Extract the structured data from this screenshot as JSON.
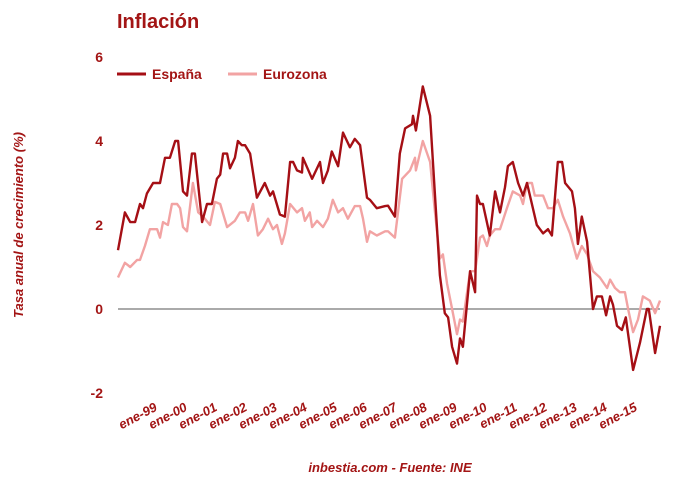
{
  "chart_data": {
    "type": "line",
    "title": "Inflación",
    "ylabel": "Tasa anual de crecimiento (%)",
    "xlabel": "",
    "source": "inbestia.com - Fuente: INE",
    "ylim": [
      -2,
      6
    ],
    "xlim": [
      1999.0,
      2015.5
    ],
    "yticks": [
      "6",
      "4",
      "2",
      "0",
      "-2"
    ],
    "ytick_values": [
      6,
      4,
      2,
      0,
      -2
    ],
    "xtick_labels": [
      "ene-99",
      "ene-00",
      "ene-01",
      "ene-02",
      "ene-03",
      "ene-04",
      "ene-05",
      "ene-06",
      "ene-07",
      "ene-08",
      "ene-09",
      "ene-10",
      "ene-11",
      "ene-12",
      "ene-13",
      "ene-14",
      "ene-15"
    ],
    "grid": false,
    "zero_line": true,
    "legend_position": "top-left",
    "colors": {
      "espana": "#a50f15",
      "eurozona": "#f2a3a3",
      "text": "#a31515",
      "zero": "#555555"
    },
    "series": [
      {
        "name": "España",
        "points": [
          [
            1999.0,
            1.4
          ],
          [
            1999.21,
            2.3
          ],
          [
            1999.37,
            2.07
          ],
          [
            1999.52,
            2.07
          ],
          [
            1999.67,
            2.5
          ],
          [
            1999.76,
            2.4
          ],
          [
            1999.88,
            2.75
          ],
          [
            2000.07,
            3.0
          ],
          [
            2000.28,
            3.0
          ],
          [
            2000.43,
            3.6
          ],
          [
            2000.58,
            3.6
          ],
          [
            2000.74,
            4.0
          ],
          [
            2000.83,
            4.0
          ],
          [
            2000.98,
            2.8
          ],
          [
            2001.1,
            2.7
          ],
          [
            2001.25,
            3.7
          ],
          [
            2001.34,
            3.7
          ],
          [
            2001.56,
            2.07
          ],
          [
            2001.71,
            2.5
          ],
          [
            2001.86,
            2.5
          ],
          [
            2002.01,
            3.1
          ],
          [
            2002.11,
            3.2
          ],
          [
            2002.2,
            3.7
          ],
          [
            2002.32,
            3.7
          ],
          [
            2002.41,
            3.35
          ],
          [
            2002.56,
            3.6
          ],
          [
            2002.65,
            4.0
          ],
          [
            2002.77,
            3.9
          ],
          [
            2002.87,
            3.9
          ],
          [
            2003.02,
            3.7
          ],
          [
            2003.23,
            2.65
          ],
          [
            2003.47,
            3.0
          ],
          [
            2003.63,
            2.7
          ],
          [
            2003.72,
            2.8
          ],
          [
            2003.93,
            2.25
          ],
          [
            2004.08,
            2.2
          ],
          [
            2004.24,
            3.5
          ],
          [
            2004.33,
            3.5
          ],
          [
            2004.45,
            3.3
          ],
          [
            2004.6,
            3.25
          ],
          [
            2004.63,
            3.6
          ],
          [
            2004.91,
            3.1
          ],
          [
            2005.15,
            3.5
          ],
          [
            2005.24,
            3.0
          ],
          [
            2005.39,
            3.3
          ],
          [
            2005.51,
            3.75
          ],
          [
            2005.7,
            3.4
          ],
          [
            2005.85,
            4.2
          ],
          [
            2006.06,
            3.85
          ],
          [
            2006.21,
            4.05
          ],
          [
            2006.37,
            3.9
          ],
          [
            2006.58,
            2.65
          ],
          [
            2006.67,
            2.6
          ],
          [
            2006.88,
            2.4
          ],
          [
            2007.13,
            2.45
          ],
          [
            2007.22,
            2.46
          ],
          [
            2007.43,
            2.2
          ],
          [
            2007.58,
            3.7
          ],
          [
            2007.74,
            4.3
          ],
          [
            2007.95,
            4.4
          ],
          [
            2007.98,
            4.6
          ],
          [
            2008.07,
            4.25
          ],
          [
            2008.28,
            5.3
          ],
          [
            2008.5,
            4.6
          ],
          [
            2008.65,
            2.7
          ],
          [
            2008.8,
            0.8
          ],
          [
            2008.95,
            -0.1
          ],
          [
            2009.05,
            -0.2
          ],
          [
            2009.17,
            -0.9
          ],
          [
            2009.32,
            -1.3
          ],
          [
            2009.41,
            -0.7
          ],
          [
            2009.5,
            -0.9
          ],
          [
            2009.72,
            0.9
          ],
          [
            2009.87,
            0.4
          ],
          [
            2009.93,
            2.7
          ],
          [
            2010.02,
            2.5
          ],
          [
            2010.11,
            2.5
          ],
          [
            2010.32,
            1.75
          ],
          [
            2010.48,
            2.8
          ],
          [
            2010.63,
            2.3
          ],
          [
            2010.78,
            2.9
          ],
          [
            2010.87,
            3.4
          ],
          [
            2011.02,
            3.5
          ],
          [
            2011.18,
            3.0
          ],
          [
            2011.33,
            2.7
          ],
          [
            2011.45,
            3.0
          ],
          [
            2011.75,
            2.0
          ],
          [
            2011.94,
            1.8
          ],
          [
            2012.09,
            1.9
          ],
          [
            2012.21,
            1.75
          ],
          [
            2012.39,
            3.5
          ],
          [
            2012.52,
            3.5
          ],
          [
            2012.61,
            3.0
          ],
          [
            2012.82,
            2.8
          ],
          [
            2012.91,
            2.4
          ],
          [
            2013.0,
            1.55
          ],
          [
            2013.12,
            2.2
          ],
          [
            2013.28,
            1.6
          ],
          [
            2013.46,
            0.0
          ],
          [
            2013.58,
            0.3
          ],
          [
            2013.73,
            0.3
          ],
          [
            2013.86,
            -0.15
          ],
          [
            2013.98,
            0.3
          ],
          [
            2014.07,
            0.1
          ],
          [
            2014.19,
            -0.4
          ],
          [
            2014.34,
            -0.5
          ],
          [
            2014.46,
            -0.2
          ],
          [
            2014.68,
            -1.45
          ],
          [
            2014.89,
            -0.8
          ],
          [
            2015.1,
            0.0
          ],
          [
            2015.16,
            0.0
          ],
          [
            2015.35,
            -1.05
          ],
          [
            2015.5,
            -0.4
          ]
        ]
      },
      {
        "name": "Eurozona",
        "points": [
          [
            1999.0,
            0.75
          ],
          [
            1999.21,
            1.1
          ],
          [
            1999.37,
            1.0
          ],
          [
            1999.58,
            1.17
          ],
          [
            1999.67,
            1.17
          ],
          [
            1999.82,
            1.5
          ],
          [
            1999.97,
            1.9
          ],
          [
            2000.19,
            1.9
          ],
          [
            2000.28,
            1.7
          ],
          [
            2000.37,
            2.07
          ],
          [
            2000.52,
            2.0
          ],
          [
            2000.64,
            2.5
          ],
          [
            2000.8,
            2.5
          ],
          [
            2000.89,
            2.4
          ],
          [
            2000.98,
            1.95
          ],
          [
            2001.1,
            1.85
          ],
          [
            2001.28,
            3.0
          ],
          [
            2001.44,
            2.3
          ],
          [
            2001.59,
            2.2
          ],
          [
            2001.8,
            2.0
          ],
          [
            2001.95,
            2.55
          ],
          [
            2002.11,
            2.5
          ],
          [
            2002.32,
            1.95
          ],
          [
            2002.56,
            2.1
          ],
          [
            2002.71,
            2.3
          ],
          [
            2002.87,
            2.3
          ],
          [
            2002.96,
            2.1
          ],
          [
            2003.11,
            2.5
          ],
          [
            2003.26,
            1.75
          ],
          [
            2003.41,
            1.9
          ],
          [
            2003.57,
            2.15
          ],
          [
            2003.72,
            1.9
          ],
          [
            2003.84,
            2.0
          ],
          [
            2003.99,
            1.55
          ],
          [
            2004.08,
            1.8
          ],
          [
            2004.24,
            2.5
          ],
          [
            2004.45,
            2.3
          ],
          [
            2004.6,
            2.4
          ],
          [
            2004.69,
            2.1
          ],
          [
            2004.84,
            2.3
          ],
          [
            2004.91,
            1.95
          ],
          [
            2005.06,
            2.1
          ],
          [
            2005.24,
            1.95
          ],
          [
            2005.39,
            2.15
          ],
          [
            2005.54,
            2.6
          ],
          [
            2005.7,
            2.3
          ],
          [
            2005.85,
            2.4
          ],
          [
            2006.0,
            2.15
          ],
          [
            2006.21,
            2.45
          ],
          [
            2006.37,
            2.45
          ],
          [
            2006.46,
            2.15
          ],
          [
            2006.58,
            1.6
          ],
          [
            2006.67,
            1.85
          ],
          [
            2006.88,
            1.75
          ],
          [
            2007.13,
            1.85
          ],
          [
            2007.22,
            1.85
          ],
          [
            2007.43,
            1.7
          ],
          [
            2007.65,
            3.1
          ],
          [
            2007.89,
            3.3
          ],
          [
            2008.04,
            3.6
          ],
          [
            2008.07,
            3.3
          ],
          [
            2008.28,
            4.0
          ],
          [
            2008.5,
            3.5
          ],
          [
            2008.65,
            2.3
          ],
          [
            2008.8,
            1.2
          ],
          [
            2008.89,
            1.3
          ],
          [
            2009.02,
            0.6
          ],
          [
            2009.17,
            0.0
          ],
          [
            2009.32,
            -0.6
          ],
          [
            2009.41,
            -0.25
          ],
          [
            2009.5,
            -0.3
          ],
          [
            2009.72,
            0.9
          ],
          [
            2009.87,
            0.9
          ],
          [
            2010.02,
            1.7
          ],
          [
            2010.11,
            1.75
          ],
          [
            2010.23,
            1.5
          ],
          [
            2010.32,
            1.75
          ],
          [
            2010.48,
            1.9
          ],
          [
            2010.63,
            1.9
          ],
          [
            2010.84,
            2.4
          ],
          [
            2011.02,
            2.8
          ],
          [
            2011.24,
            2.7
          ],
          [
            2011.33,
            2.5
          ],
          [
            2011.45,
            3.0
          ],
          [
            2011.6,
            3.0
          ],
          [
            2011.69,
            2.7
          ],
          [
            2011.94,
            2.7
          ],
          [
            2012.09,
            2.4
          ],
          [
            2012.24,
            2.4
          ],
          [
            2012.39,
            2.6
          ],
          [
            2012.55,
            2.2
          ],
          [
            2012.76,
            1.8
          ],
          [
            2012.97,
            1.2
          ],
          [
            2013.12,
            1.5
          ],
          [
            2013.28,
            1.3
          ],
          [
            2013.46,
            0.9
          ],
          [
            2013.67,
            0.75
          ],
          [
            2013.89,
            0.5
          ],
          [
            2013.98,
            0.7
          ],
          [
            2014.13,
            0.5
          ],
          [
            2014.28,
            0.4
          ],
          [
            2014.43,
            0.4
          ],
          [
            2014.53,
            0.0
          ],
          [
            2014.68,
            -0.55
          ],
          [
            2014.83,
            -0.25
          ],
          [
            2014.98,
            0.3
          ],
          [
            2015.19,
            0.2
          ],
          [
            2015.35,
            -0.1
          ],
          [
            2015.5,
            0.2
          ]
        ]
      }
    ]
  }
}
